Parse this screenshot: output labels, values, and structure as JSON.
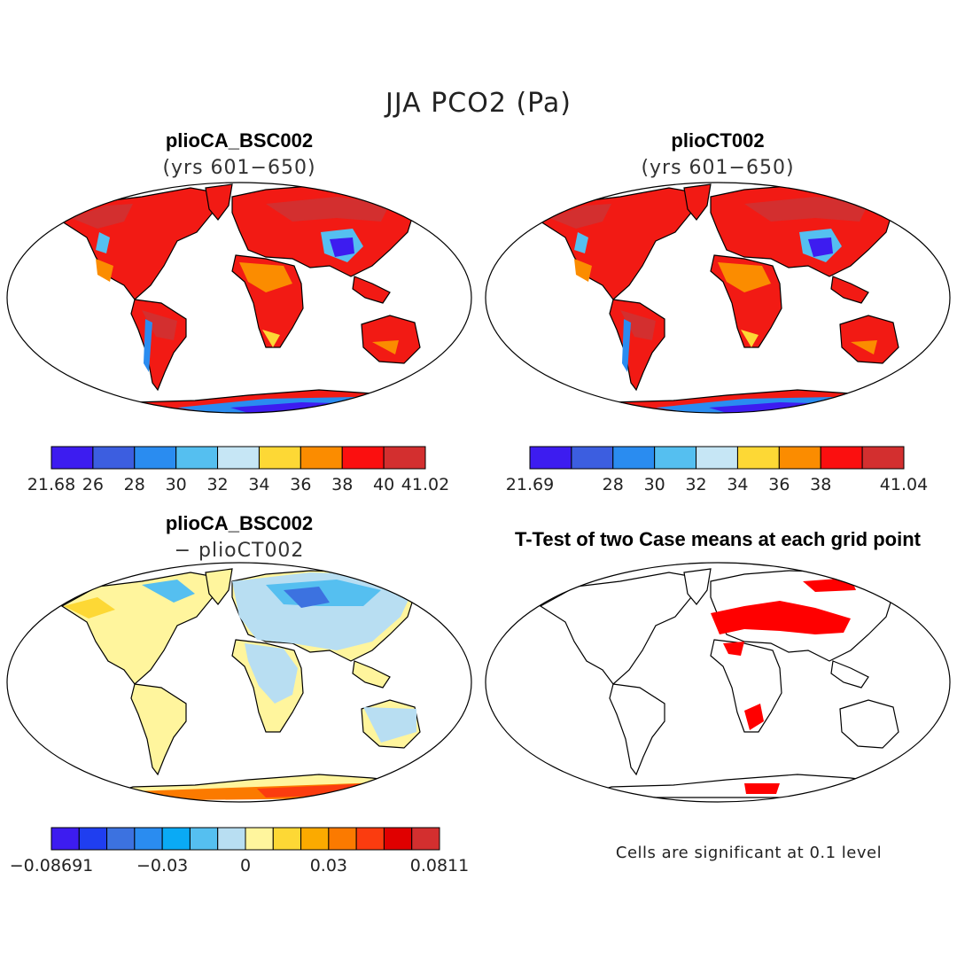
{
  "figure": {
    "title": "JJA PCO2 (Pa)"
  },
  "panels": [
    {
      "id": "plioCA",
      "title": "plioCA_BSC002",
      "subtitle": "(yrs 601−650)",
      "colorbar": {
        "colors": [
          "#3d1cf0",
          "#3c5ee0",
          "#2a8cf0",
          "#55bff0",
          "#c6e6f5",
          "#fdd835",
          "#fb8c00",
          "#fb0f0f",
          "#d32f2f"
        ],
        "labels": [
          "21.68",
          "26",
          "28",
          "30",
          "32",
          "34",
          "36",
          "38",
          "40",
          "41.02"
        ]
      }
    },
    {
      "id": "plioCT",
      "title": "plioCT002",
      "subtitle": "(yrs 601−650)",
      "colorbar": {
        "colors": [
          "#3d1cf0",
          "#3c5ee0",
          "#2a8cf0",
          "#55bff0",
          "#c6e6f5",
          "#fdd835",
          "#fb8c00",
          "#fb0f0f",
          "#d32f2f"
        ],
        "labels": [
          "21.69",
          "",
          "28",
          "30",
          "32",
          "34",
          "36",
          "38",
          "",
          "41.04"
        ]
      }
    },
    {
      "id": "diff",
      "title": "plioCA_BSC002",
      "subtitle": "− plioCT002",
      "colorbar": {
        "colors": [
          "#3d1cf0",
          "#1f3ef0",
          "#3c72e0",
          "#2a8cf0",
          "#0aaaf5",
          "#55bff0",
          "#b8def2",
          "#fff59d",
          "#fdd835",
          "#fbaa00",
          "#fb7a00",
          "#fb3c0f",
          "#e00000",
          "#d32f2f"
        ],
        "labels": [
          "−0.08691",
          "−0.03",
          "0",
          "0.03",
          "0.0811"
        ]
      }
    },
    {
      "id": "ttest",
      "title": "T-Test of two Case means at each grid point",
      "note": "Cells are significant at 0.1 level",
      "sig_color": "#ff0000"
    }
  ]
}
